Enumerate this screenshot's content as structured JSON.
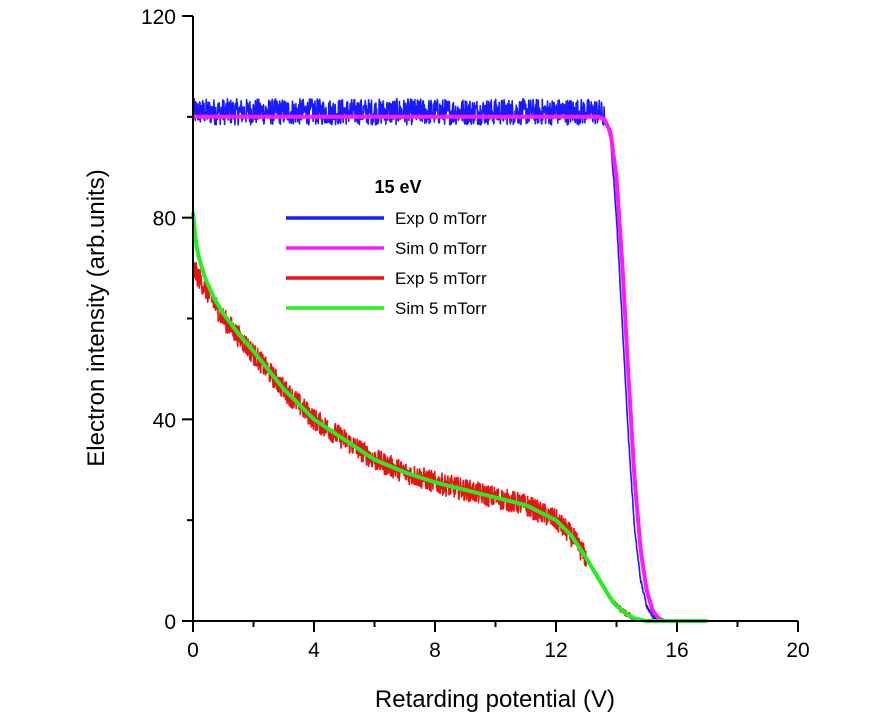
{
  "chart_data": {
    "type": "line",
    "xlabel": "Retarding potential (V)",
    "ylabel": "Electron intensity (arb.units)",
    "xlim": [
      0,
      20
    ],
    "ylim": [
      0,
      120
    ],
    "x_ticks": [
      "0",
      "4",
      "8",
      "12",
      "16",
      "20"
    ],
    "y_ticks": [
      "0",
      "40",
      "80",
      "120"
    ],
    "grid": false,
    "legend": {
      "title": "15 eV",
      "placement": "center-left",
      "entries": [
        "Exp 0 mTorr",
        "Sim 0 mTorr",
        "Exp 5 mTorr",
        "Sim 5 mTorr"
      ]
    },
    "series": [
      {
        "name": "Exp 0 mTorr",
        "color": "#1a1aff",
        "noisy": true,
        "x": [
          0,
          1,
          2,
          4,
          6,
          8,
          10,
          12,
          13,
          13.4,
          13.6,
          13.8,
          14.0,
          14.2,
          14.4,
          14.6,
          14.8,
          15.0,
          15.2,
          15.4,
          16,
          17
        ],
        "y": [
          101,
          101,
          101,
          101,
          101,
          101,
          101,
          101,
          101,
          101,
          100,
          96,
          80,
          58,
          36,
          18,
          8,
          3,
          1,
          0,
          0,
          0
        ]
      },
      {
        "name": "Sim 0 mTorr",
        "color": "#ff19ff",
        "noisy": false,
        "x": [
          0,
          2,
          4,
          6,
          8,
          10,
          12,
          13,
          13.4,
          13.6,
          13.8,
          14.0,
          14.2,
          14.4,
          14.6,
          14.8,
          15.0,
          15.2,
          15.4,
          15.6,
          16,
          17
        ],
        "y": [
          100,
          100,
          100,
          100,
          100,
          100,
          100,
          100,
          100,
          99.5,
          97,
          88,
          70,
          48,
          28,
          14,
          6,
          2,
          0.5,
          0,
          0,
          0
        ]
      },
      {
        "name": "Exp 5 mTorr",
        "color": "#ee1111",
        "noisy": true,
        "x": [
          0,
          0.2,
          0.5,
          1,
          2,
          3,
          4,
          5,
          6,
          7,
          8,
          9,
          10,
          11,
          12,
          12.5,
          13,
          13.5,
          13.8,
          14.0,
          14.3,
          14.6,
          15,
          15.5,
          16,
          17
        ],
        "y": [
          70,
          68,
          65,
          60,
          53,
          46,
          40,
          36,
          32,
          29.5,
          27.5,
          26,
          24.5,
          23,
          20,
          17,
          12.5,
          7.5,
          4.5,
          3,
          1.5,
          0.5,
          0,
          0,
          0,
          0
        ]
      },
      {
        "name": "Sim 5 mTorr",
        "color": "#22ee22",
        "noisy": false,
        "x": [
          0,
          0.05,
          0.1,
          0.2,
          0.4,
          0.7,
          1,
          1.5,
          2,
          3,
          4,
          5,
          6,
          7,
          8,
          9,
          10,
          11,
          12,
          12.5,
          13,
          13.5,
          13.8,
          14.0,
          14.3,
          14.6,
          15,
          15.5,
          16,
          17
        ],
        "y": [
          81,
          78,
          75,
          72,
          68,
          64,
          61,
          57,
          53.5,
          46,
          40,
          36,
          32,
          29.5,
          27.5,
          26,
          24.5,
          23,
          20,
          17,
          12.5,
          7.5,
          4.5,
          3,
          1.5,
          0.5,
          0,
          0,
          0,
          0
        ]
      }
    ]
  }
}
